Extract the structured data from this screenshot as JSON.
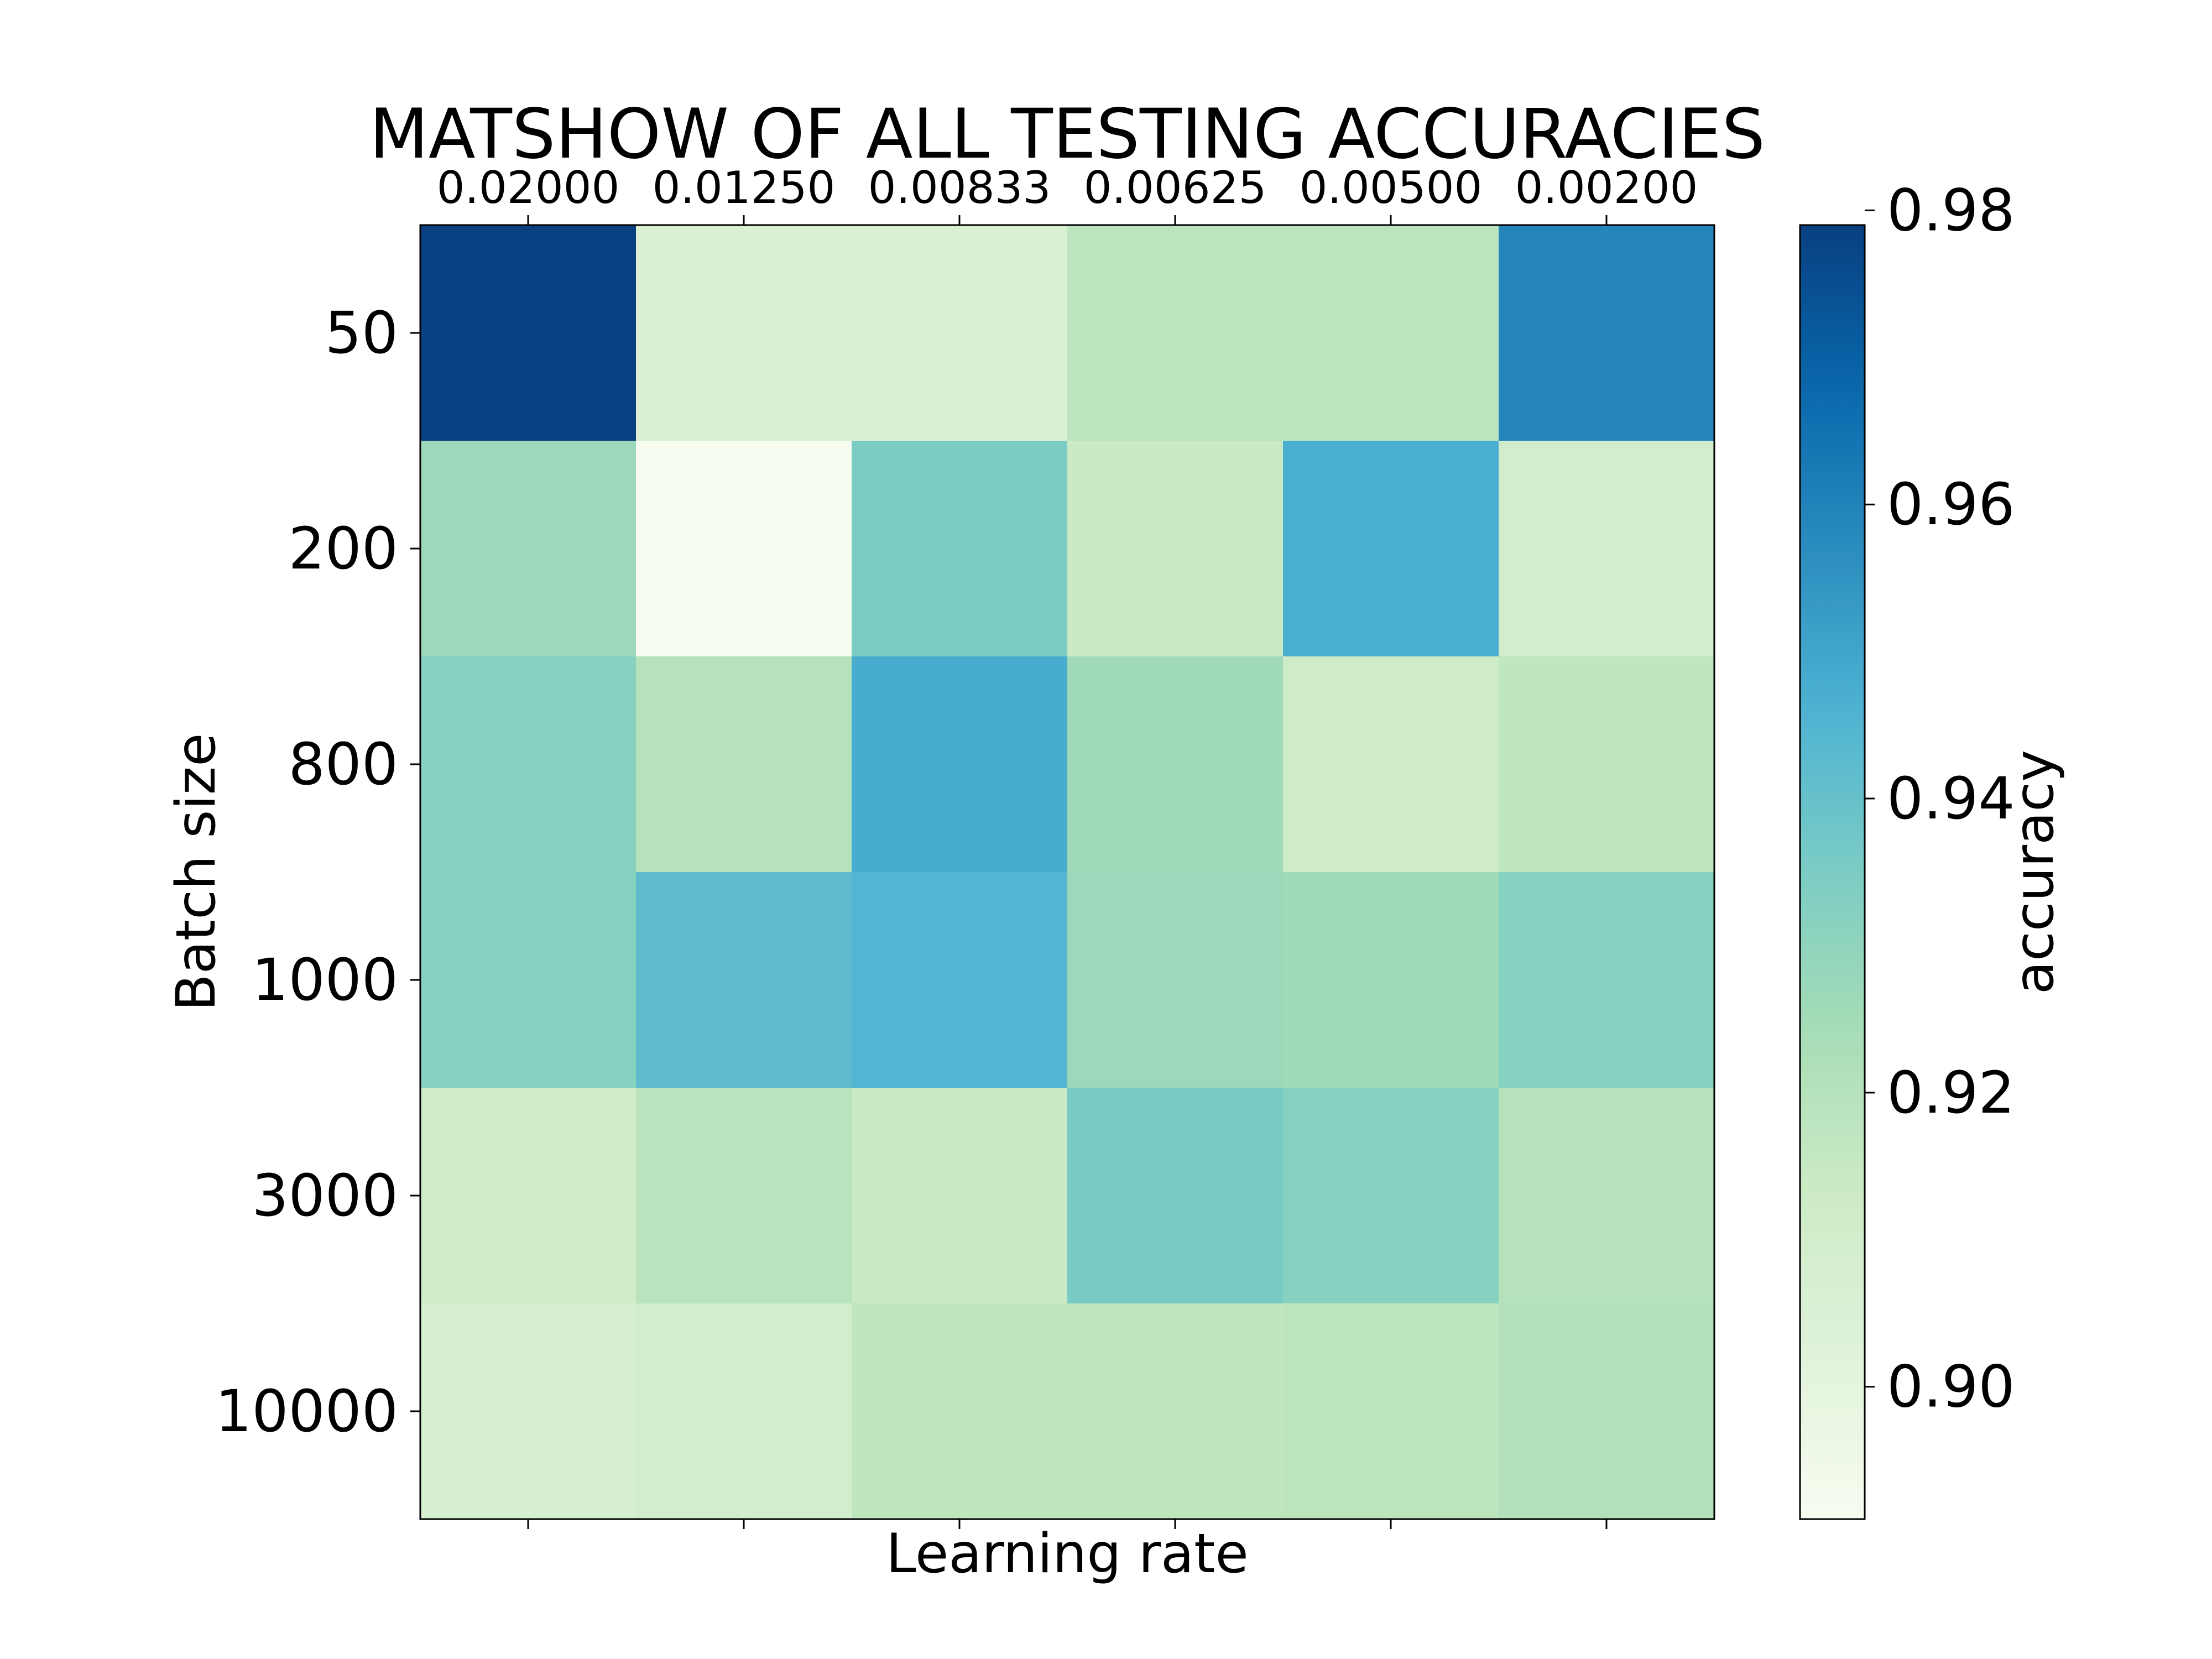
{
  "chart_data": {
    "type": "heatmap",
    "title": "MATSHOW OF ALL TESTING ACCURACIES",
    "xlabel": "Learning rate",
    "ylabel": "Batch size",
    "x_categories": [
      "0.02000",
      "0.01250",
      "0.00833",
      "0.00625",
      "0.00500",
      "0.00200"
    ],
    "y_categories": [
      "50",
      "200",
      "800",
      "1000",
      "3000",
      "10000"
    ],
    "x_tick_position": "top",
    "values": [
      [
        0.979,
        0.906,
        0.906,
        0.918,
        0.918,
        0.959
      ],
      [
        0.927,
        0.891,
        0.935,
        0.914,
        0.947,
        0.91
      ],
      [
        0.932,
        0.92,
        0.948,
        0.926,
        0.912,
        0.917
      ],
      [
        0.932,
        0.942,
        0.945,
        0.927,
        0.926,
        0.932
      ],
      [
        0.911,
        0.919,
        0.914,
        0.936,
        0.932,
        0.92
      ],
      [
        0.908,
        0.91,
        0.917,
        0.917,
        0.918,
        0.921
      ]
    ],
    "colorbar": {
      "label": "accuracy",
      "range": [
        0.891,
        0.979
      ],
      "ticks": [
        "0.90",
        "0.92",
        "0.94",
        "0.96",
        "0.98"
      ],
      "colormap": "GnBu"
    },
    "grid": false
  }
}
